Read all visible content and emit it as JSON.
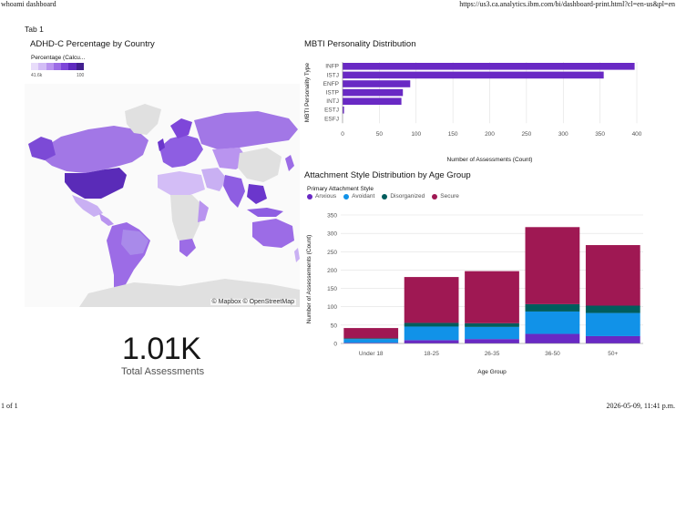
{
  "browser": {
    "page_title": "whoami dashboard",
    "url": "https://us3.ca.analytics.ibm.com/bi/dashboard-print.html?cl=en-us&pl=en",
    "page_count": "1 of 1",
    "timestamp": "2026-05-09, 11:41 p.m."
  },
  "dashboard": {
    "tab": "Tab 1",
    "map": {
      "title": "ADHD-C Percentage by Country",
      "legend_title": "Percentage (Calcu...",
      "legend_min": "41.6k",
      "legend_max": "100",
      "legend_colors": [
        "#e8dcfa",
        "#d3bdf6",
        "#b994ef",
        "#9c6ce6",
        "#7e46d9",
        "#5f2bbf",
        "#411f8f"
      ],
      "attribution": "© Mapbox © OpenStreetMap"
    },
    "kpi": {
      "value": "1.01K",
      "label": "Total Assessments"
    },
    "mbti": {
      "title": "MBTI Personality Distribution"
    },
    "attachment": {
      "title": "Attachment Style Distribution by Age Group",
      "legend_title": "Primary Attachment Style"
    }
  },
  "chart_data": [
    {
      "type": "bar",
      "orientation": "horizontal",
      "title": "MBTI Personality Distribution",
      "categories": [
        "INFP",
        "ISTJ",
        "ENFP",
        "ISTP",
        "INTJ",
        "ESTJ",
        "ESFJ"
      ],
      "values": [
        397,
        355,
        92,
        82,
        80,
        2,
        0
      ],
      "xlabel": "Number of Assessments (Count)",
      "ylabel": "MBTI Personality Type",
      "xlim": [
        0,
        400
      ],
      "xticks": [
        0,
        50,
        100,
        150,
        200,
        250,
        300,
        350,
        400
      ],
      "color": "#6929c4",
      "grid": true
    },
    {
      "type": "bar",
      "stacked": true,
      "title": "Attachment Style Distribution by Age Group",
      "categories": [
        "Under 18",
        "18-25",
        "26-35",
        "36-50",
        "50+"
      ],
      "series": [
        {
          "name": "Anxious",
          "color": "#6929c4",
          "values": [
            2,
            9,
            12,
            26,
            20
          ]
        },
        {
          "name": "Avoidant",
          "color": "#1192e8",
          "values": [
            10,
            37,
            33,
            61,
            63
          ]
        },
        {
          "name": "Disorganized",
          "color": "#005d5d",
          "values": [
            2,
            10,
            10,
            20,
            20
          ]
        },
        {
          "name": "Secure",
          "color": "#9f1853",
          "values": [
            28,
            125,
            142,
            210,
            165
          ]
        }
      ],
      "xlabel": "Age Group",
      "ylabel": "Number of Assessements (Count)",
      "ylim": [
        0,
        350
      ],
      "yticks": [
        0,
        50,
        100,
        150,
        200,
        250,
        300,
        350
      ],
      "legend": "top-left",
      "grid": true
    }
  ]
}
